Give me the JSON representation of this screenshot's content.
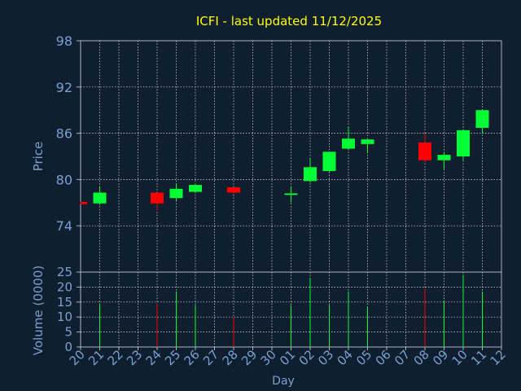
{
  "colors": {
    "background": "#0f1f30",
    "axis": "#aab4c8",
    "grid": "#e0e0e0",
    "title": "#ffff00",
    "label": "#7aa0d0",
    "up": "#00ff33",
    "down": "#ff0000"
  },
  "chart_data": {
    "type": "candlestick",
    "title": "ICFI - last updated 11/12/2025",
    "xlabel": "Day",
    "ylabel_price": "Price",
    "ylabel_volume": "Volume (0000)",
    "x_ticks": [
      "20",
      "21",
      "22",
      "23",
      "24",
      "25",
      "26",
      "27",
      "28",
      "29",
      "30",
      "01",
      "02",
      "03",
      "04",
      "05",
      "06",
      "07",
      "08",
      "09",
      "10",
      "11",
      "12"
    ],
    "price_ticks": [
      74,
      80,
      86,
      92,
      98
    ],
    "price_range": [
      68,
      98
    ],
    "volume_ticks": [
      0,
      5,
      10,
      15,
      20,
      25
    ],
    "volume_range": [
      0,
      25
    ],
    "grid": true,
    "candles": [
      {
        "x": 0,
        "open": 77.1,
        "close": 76.8,
        "high": 77.1,
        "low": 76.8,
        "volume": null
      },
      {
        "x": 1,
        "open": 76.9,
        "close": 78.3,
        "high": 79.0,
        "low": 76.7,
        "volume": 14.5
      },
      {
        "x": 4,
        "open": 78.3,
        "close": 76.9,
        "high": 78.3,
        "low": 76.0,
        "volume": 14.5
      },
      {
        "x": 5,
        "open": 77.6,
        "close": 78.8,
        "high": 79.5,
        "low": 77.3,
        "volume": 18.5
      },
      {
        "x": 6,
        "open": 78.4,
        "close": 79.3,
        "high": 79.5,
        "low": 78.2,
        "volume": 14.0
      },
      {
        "x": 8,
        "open": 79.0,
        "close": 78.3,
        "high": 79.0,
        "low": 78.1,
        "volume": 10.0
      },
      {
        "x": 11,
        "open": 78.0,
        "close": 78.2,
        "high": 79.0,
        "low": 77.0,
        "volume": 14.0
      },
      {
        "x": 12,
        "open": 79.8,
        "close": 81.6,
        "high": 82.8,
        "low": 79.6,
        "volume": 23.0
      },
      {
        "x": 13,
        "open": 81.1,
        "close": 83.6,
        "high": 83.6,
        "low": 81.0,
        "volume": 14.0
      },
      {
        "x": 14,
        "open": 84.0,
        "close": 85.3,
        "high": 86.8,
        "low": 83.9,
        "volume": 18.5
      },
      {
        "x": 15,
        "open": 84.6,
        "close": 85.2,
        "high": 85.2,
        "low": 83.4,
        "volume": 13.5
      },
      {
        "x": 18,
        "open": 84.8,
        "close": 82.5,
        "high": 86.0,
        "low": 82.4,
        "volume": 19.5
      },
      {
        "x": 19,
        "open": 82.5,
        "close": 83.2,
        "high": 83.6,
        "low": 81.4,
        "volume": 15.5
      },
      {
        "x": 20,
        "open": 83.0,
        "close": 86.4,
        "high": 86.4,
        "low": 82.5,
        "volume": 24.0
      },
      {
        "x": 21,
        "open": 86.7,
        "close": 89.0,
        "high": 89.0,
        "low": 86.0,
        "volume": 18.5
      }
    ]
  }
}
